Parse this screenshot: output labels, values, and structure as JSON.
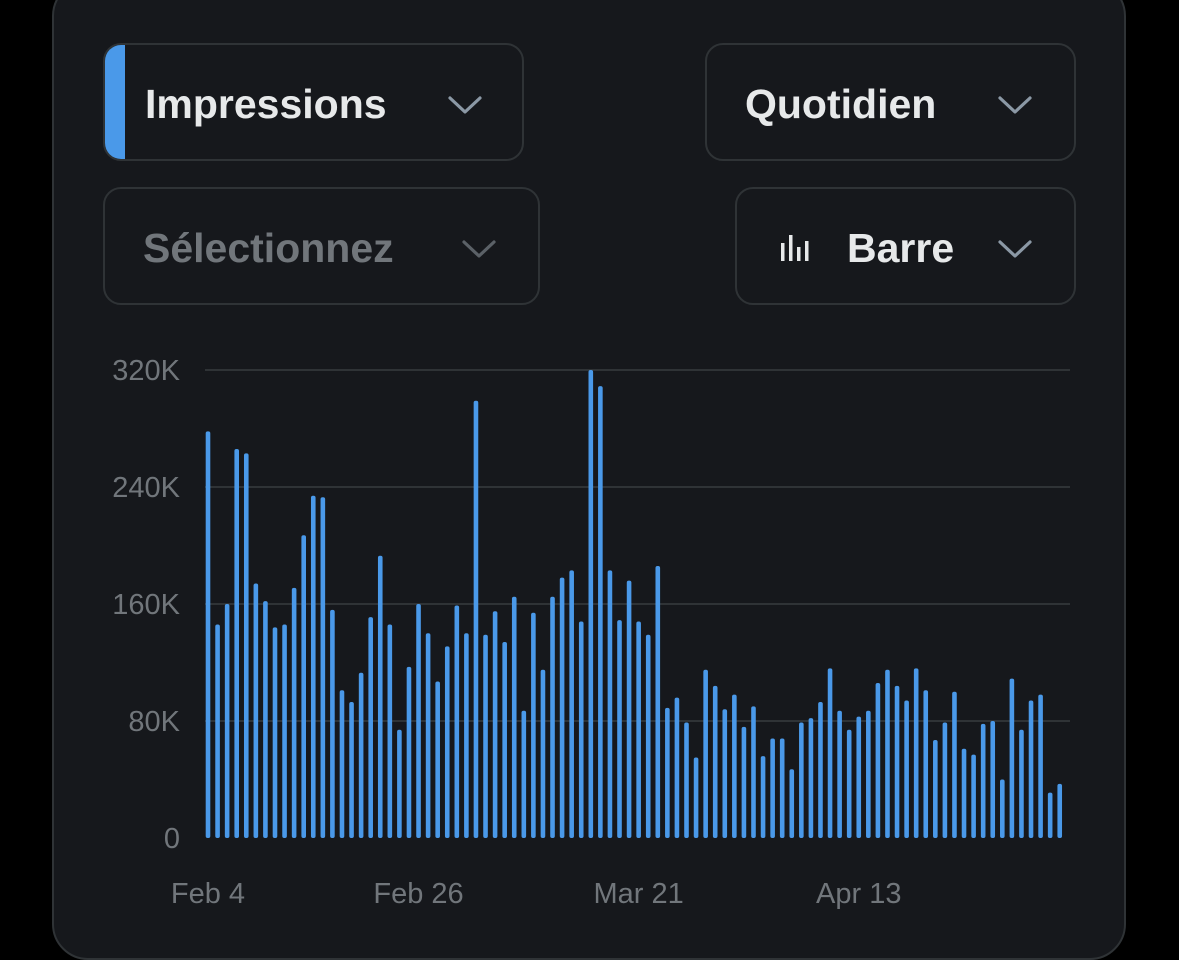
{
  "controls": {
    "metric_label": "Impressions",
    "period_label": "Quotidien",
    "compare_placeholder": "Sélectionnez",
    "chart_type_label": "Barre",
    "accent_color": "#4a99e9",
    "chart_type_icon": "bar-chart-icon",
    "dropdown_icon": "chevron-down-icon"
  },
  "chart_data": {
    "type": "bar",
    "bar_color": "#4a99e9",
    "grid": true,
    "ylim": [
      0,
      320000
    ],
    "yticks": [
      {
        "value": 0,
        "label": "0"
      },
      {
        "value": 80000,
        "label": "80K"
      },
      {
        "value": 160000,
        "label": "160K"
      },
      {
        "value": 240000,
        "label": "240K"
      },
      {
        "value": 320000,
        "label": "320K"
      }
    ],
    "xticks": [
      {
        "index": 0,
        "label": "Feb 4"
      },
      {
        "index": 22,
        "label": "Feb 26"
      },
      {
        "index": 45,
        "label": "Mar 21"
      },
      {
        "index": 68,
        "label": "Apr 13"
      }
    ],
    "values": [
      278000,
      146000,
      160000,
      266000,
      263000,
      174000,
      162000,
      144000,
      146000,
      171000,
      207000,
      234000,
      233000,
      156000,
      101000,
      93000,
      113000,
      151000,
      193000,
      146000,
      74000,
      117000,
      160000,
      140000,
      107000,
      131000,
      159000,
      140000,
      299000,
      139000,
      155000,
      134000,
      165000,
      87000,
      154000,
      115000,
      165000,
      178000,
      183000,
      148000,
      320000,
      309000,
      183000,
      149000,
      176000,
      148000,
      139000,
      186000,
      89000,
      96000,
      79000,
      55000,
      115000,
      104000,
      88000,
      98000,
      76000,
      90000,
      56000,
      68000,
      68000,
      47000,
      79000,
      82000,
      93000,
      116000,
      87000,
      74000,
      83000,
      87000,
      106000,
      115000,
      104000,
      94000,
      116000,
      101000,
      67000,
      79000,
      100000,
      61000,
      57000,
      78000,
      80000,
      40000,
      109000,
      74000,
      94000,
      98000,
      31000,
      37000
    ]
  }
}
